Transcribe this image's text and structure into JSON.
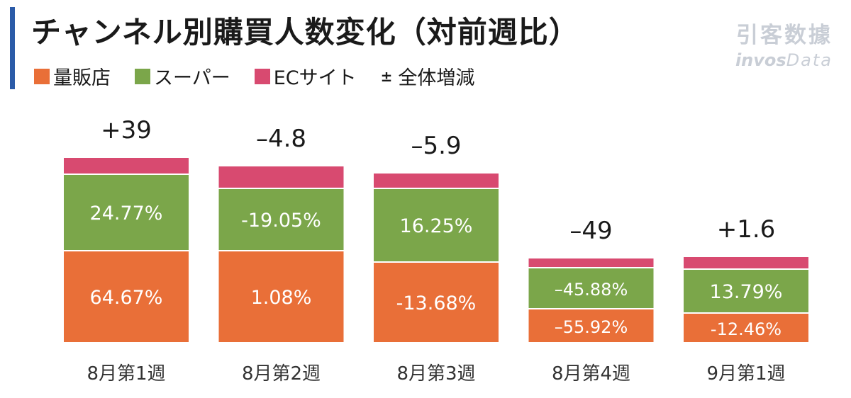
{
  "header": {
    "title": "チャンネル別購買人数変化（対前週比）",
    "accent_color": "#2B5BA8"
  },
  "logo": {
    "cn": "引客数據",
    "en_bold": "invos",
    "en_italic": "Data"
  },
  "legend": {
    "items": [
      {
        "label": "量販店",
        "color": "#E96F38"
      },
      {
        "label": "スーパー",
        "color": "#7BA64A"
      },
      {
        "label": "ECサイト",
        "color": "#D84A70"
      }
    ],
    "total_label": "全体増減",
    "total_symbol": "±"
  },
  "chart_data": {
    "type": "bar",
    "stacked": true,
    "categories": [
      "8月第1週",
      "8月第2週",
      "8月第3週",
      "8月第4週",
      "9月第1週"
    ],
    "series": [
      {
        "name": "量販店",
        "color": "#E96F38",
        "labels": [
          "64.67%",
          "1.08%",
          "-13.68%",
          "–55.92%",
          "-12.46%"
        ]
      },
      {
        "name": "スーパー",
        "color": "#7BA64A",
        "labels": [
          "24.77%",
          "-19.05%",
          "16.25%",
          "–45.88%",
          "13.79%"
        ]
      },
      {
        "name": "ECサイト",
        "color": "#D84A70",
        "labels": [
          "",
          "",
          "",
          "",
          ""
        ]
      }
    ],
    "totals": [
      "+39",
      "–4.8",
      "–5.9",
      "–49",
      "+1.6"
    ],
    "segment_heights": [
      [
        128,
        106,
        22
      ],
      [
        128,
        86,
        30
      ],
      [
        112,
        102,
        20
      ],
      [
        46,
        56,
        12
      ],
      [
        40,
        60,
        16
      ]
    ],
    "grid": false
  }
}
